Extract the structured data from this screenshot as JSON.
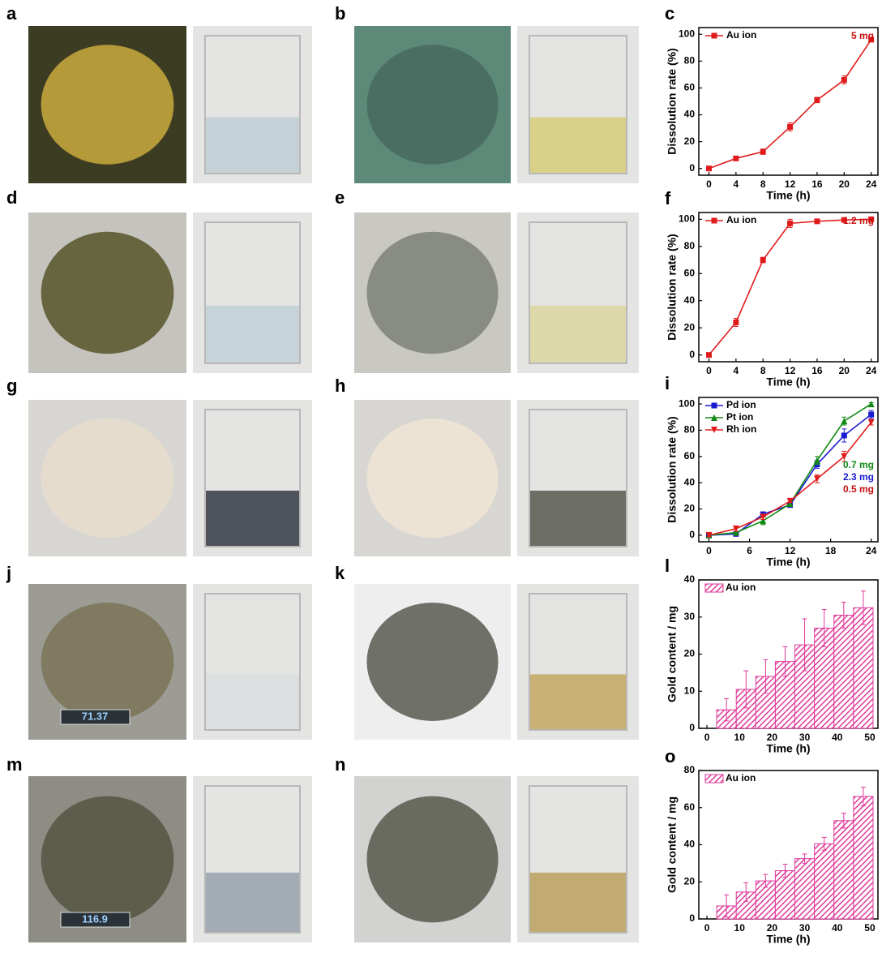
{
  "photo_panels": [
    {
      "label": "a"
    },
    {
      "label": "b"
    },
    {
      "label": "d"
    },
    {
      "label": "e"
    },
    {
      "label": "g"
    },
    {
      "label": "h"
    },
    {
      "label": "j",
      "display": "71.37"
    },
    {
      "label": "k"
    },
    {
      "label": "m",
      "display": "116.9"
    },
    {
      "label": "n"
    }
  ],
  "chart_data": [
    {
      "type": "line",
      "panel": "c",
      "xlabel": "Time (h)",
      "ylabel": "Dissolution rate (%)",
      "x": [
        0,
        4,
        8,
        12,
        16,
        20,
        24
      ],
      "series": [
        {
          "name": "Au ion",
          "color": "#e01b1b",
          "marker": "square",
          "values": [
            0,
            7.5,
            12.5,
            31,
            51,
            66,
            96
          ],
          "errors": [
            0.5,
            1,
            2,
            3,
            2,
            3,
            1
          ]
        }
      ],
      "annotations": [
        {
          "text": "5 mg",
          "color": "#c81010"
        }
      ],
      "xlim": [
        -1.5,
        25
      ],
      "ylim": [
        -5,
        105
      ],
      "xticks": [
        0,
        4,
        8,
        12,
        16,
        20,
        24
      ],
      "yticks": [
        0,
        20,
        40,
        60,
        80,
        100
      ],
      "legend": "upper left"
    },
    {
      "type": "line",
      "panel": "f",
      "xlabel": "Time (h)",
      "ylabel": "Dissolution rate (%)",
      "x": [
        0,
        4,
        8,
        12,
        16,
        20,
        24
      ],
      "series": [
        {
          "name": "Au ion",
          "color": "#e01b1b",
          "marker": "square",
          "values": [
            0,
            24,
            70,
            97,
            98.5,
            99.5,
            100
          ],
          "errors": [
            1,
            3,
            2,
            3,
            1,
            1,
            1
          ]
        }
      ],
      "annotations": [
        {
          "text": "1.2 mg",
          "color": "#c81010"
        }
      ],
      "xlim": [
        -1.5,
        25
      ],
      "ylim": [
        -5,
        105
      ],
      "xticks": [
        0,
        4,
        8,
        12,
        16,
        20,
        24
      ],
      "yticks": [
        0,
        20,
        40,
        60,
        80,
        100
      ],
      "legend": "upper left"
    },
    {
      "type": "line",
      "panel": "i",
      "xlabel": "Time (h)",
      "ylabel": "Dissolution rate (%)",
      "x": [
        0,
        4,
        8,
        12,
        16,
        20,
        24
      ],
      "series": [
        {
          "name": "Pd ion",
          "color": "#1a1ad0",
          "marker": "square",
          "values": [
            0,
            1,
            16,
            23,
            54,
            76,
            92
          ],
          "errors": [
            1,
            1,
            1,
            1,
            3,
            5,
            3
          ]
        },
        {
          "name": "Pt ion",
          "color": "#138a13",
          "marker": "triangle",
          "values": [
            0,
            2,
            11,
            24,
            57,
            87,
            100
          ],
          "errors": [
            1,
            1,
            3,
            1,
            3,
            3,
            1
          ]
        },
        {
          "name": "Rh ion",
          "color": "#e01b1b",
          "marker": "triangle-down",
          "values": [
            0,
            5,
            14,
            26,
            43,
            60,
            86
          ],
          "errors": [
            1,
            2,
            2,
            1,
            3,
            4,
            2
          ]
        }
      ],
      "annotations": [
        {
          "text": "0.7 mg",
          "color": "#138a13"
        },
        {
          "text": "2.3 mg",
          "color": "#1a1ad0"
        },
        {
          "text": "0.5 mg",
          "color": "#c81010"
        }
      ],
      "xlim": [
        -1.5,
        25
      ],
      "ylim": [
        -5,
        105
      ],
      "xticks": [
        0,
        6,
        12,
        18,
        24
      ],
      "yticks": [
        0,
        20,
        40,
        60,
        80,
        100
      ],
      "legend": "upper left"
    },
    {
      "type": "bar",
      "panel": "l",
      "xlabel": "Time (h)",
      "ylabel": "Gold content / mg",
      "x": [
        6,
        12,
        18,
        24,
        30,
        36,
        42,
        48
      ],
      "series": [
        {
          "name": "Au ion",
          "color": "#e0399a",
          "values": [
            5,
            10.5,
            14,
            18,
            22.5,
            27,
            30.5,
            32.5
          ],
          "errors": [
            3,
            5,
            4.5,
            4,
            7,
            5,
            3.5,
            4.5
          ]
        }
      ],
      "xlim": [
        -2.5,
        52.5
      ],
      "ylim": [
        0,
        40
      ],
      "xticks": [
        0,
        10,
        20,
        30,
        40,
        50
      ],
      "yticks": [
        0,
        10,
        20,
        30,
        40
      ],
      "legend": "upper left",
      "hatch": true
    },
    {
      "type": "bar",
      "panel": "o",
      "xlabel": "Time (h)",
      "ylabel": "Gold content / mg",
      "x": [
        6,
        12,
        18,
        24,
        30,
        36,
        42,
        48
      ],
      "series": [
        {
          "name": "Au ion",
          "color": "#e0399a",
          "values": [
            7,
            14.5,
            20.5,
            26,
            32.5,
            40.5,
            53,
            66
          ],
          "errors": [
            6,
            5,
            3.5,
            3.5,
            2.5,
            3.5,
            4,
            5
          ]
        }
      ],
      "xlim": [
        -2.5,
        52.5
      ],
      "ylim": [
        0,
        80
      ],
      "xticks": [
        0,
        10,
        20,
        30,
        40,
        50
      ],
      "yticks": [
        0,
        20,
        40,
        60,
        80
      ],
      "legend": "upper left",
      "hatch": true
    }
  ]
}
